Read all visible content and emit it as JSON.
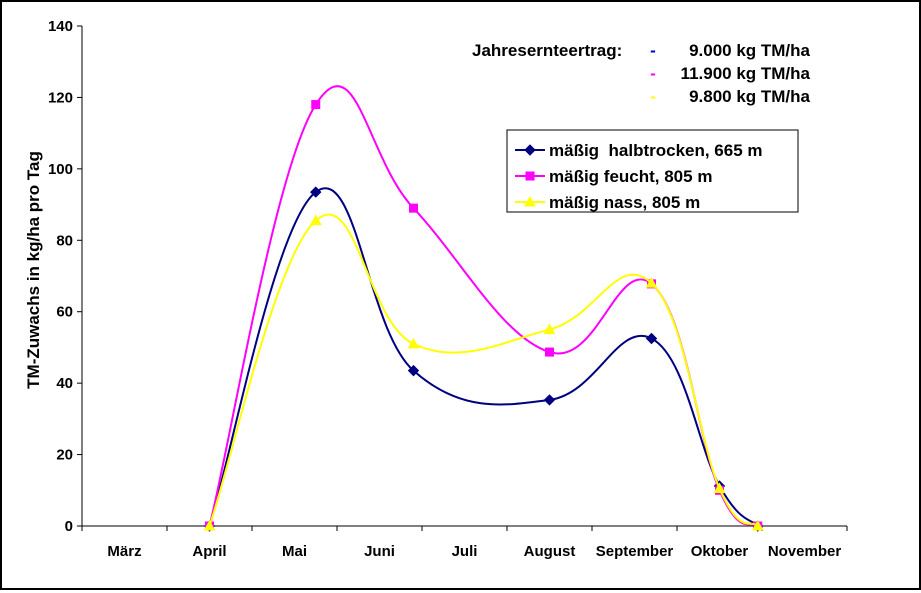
{
  "chart_data": {
    "type": "line",
    "title": "",
    "xlabel": "",
    "ylabel": "TM-Zuwachs in kg/ha pro Tag",
    "ylim": [
      0,
      140
    ],
    "yticks": [
      "0",
      "20",
      "40",
      "60",
      "80",
      "100",
      "120",
      "140"
    ],
    "categories": [
      "März",
      "April",
      "Mai",
      "Juni",
      "Juli",
      "August",
      "September",
      "Oktober",
      "November"
    ],
    "grid": false,
    "legend_position": "right",
    "annotation": {
      "heading": "Jahresernteertrag:",
      "entries": [
        {
          "marker": "-",
          "text": "9.000 kg TM/ha",
          "color": "#0000cc"
        },
        {
          "marker": "-",
          "text": "11.900 kg TM/ha",
          "color": "#ff00ff"
        },
        {
          "marker": "-",
          "text": "9.800 kg TM/ha",
          "color": "#ffff00"
        }
      ]
    },
    "series": [
      {
        "name": "mäßig  halbtrocken, 665 m",
        "color": "#000080",
        "marker": "diamond",
        "points": [
          [
            1.0,
            0
          ],
          [
            2.25,
            93.5
          ],
          [
            3.4,
            43.5
          ],
          [
            5.0,
            35.3
          ],
          [
            6.2,
            52.5
          ],
          [
            7.0,
            11.2
          ],
          [
            7.45,
            0
          ]
        ]
      },
      {
        "name": "mäßig feucht, 805 m",
        "color": "#ff00ff",
        "marker": "square",
        "points": [
          [
            1.0,
            0
          ],
          [
            2.25,
            118
          ],
          [
            3.4,
            89
          ],
          [
            5.0,
            48.7
          ],
          [
            6.2,
            67.8
          ],
          [
            7.0,
            10
          ],
          [
            7.45,
            0
          ]
        ]
      },
      {
        "name": "mäßig nass, 805 m",
        "color": "#ffff00",
        "marker": "triangle",
        "points": [
          [
            1.0,
            0
          ],
          [
            2.25,
            85.5
          ],
          [
            3.4,
            51
          ],
          [
            5.0,
            55
          ],
          [
            6.2,
            68
          ],
          [
            7.0,
            10.5
          ],
          [
            7.45,
            0
          ]
        ]
      }
    ]
  }
}
